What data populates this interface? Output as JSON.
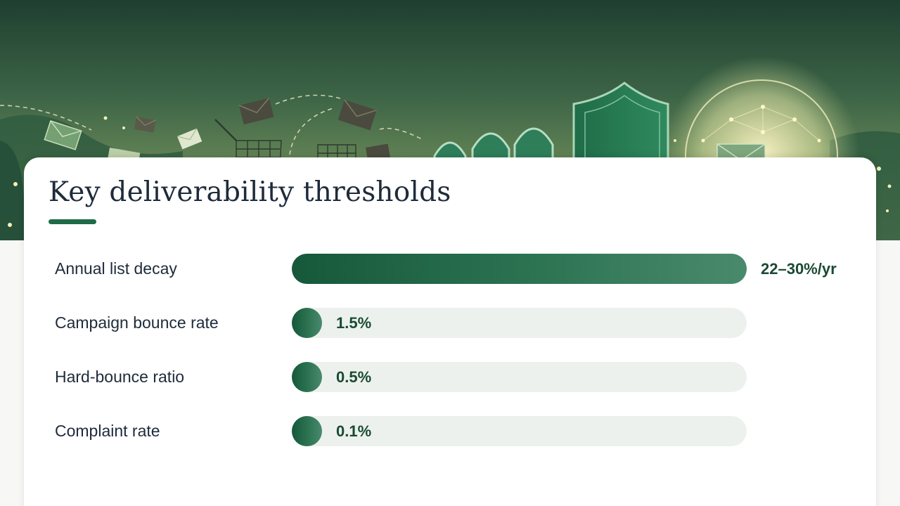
{
  "slide": {
    "title": "Key deliverability thresholds"
  },
  "chart_data": {
    "type": "bar",
    "orientation": "horizontal",
    "categories": [
      "Annual list decay",
      "Campaign bounce rate",
      "Hard-bounce ratio",
      "Complaint rate"
    ],
    "values": [
      30,
      1.5,
      0.5,
      0.1
    ],
    "value_labels": [
      "22–30%/yr",
      "1.5%",
      "0.5%",
      "0.1%"
    ],
    "xlim": [
      0,
      30
    ],
    "grid": false,
    "legend": "none",
    "colors": {
      "bar": "#1e6b47",
      "track": "#ecf1ee",
      "value_text": "#1a4a32"
    }
  }
}
